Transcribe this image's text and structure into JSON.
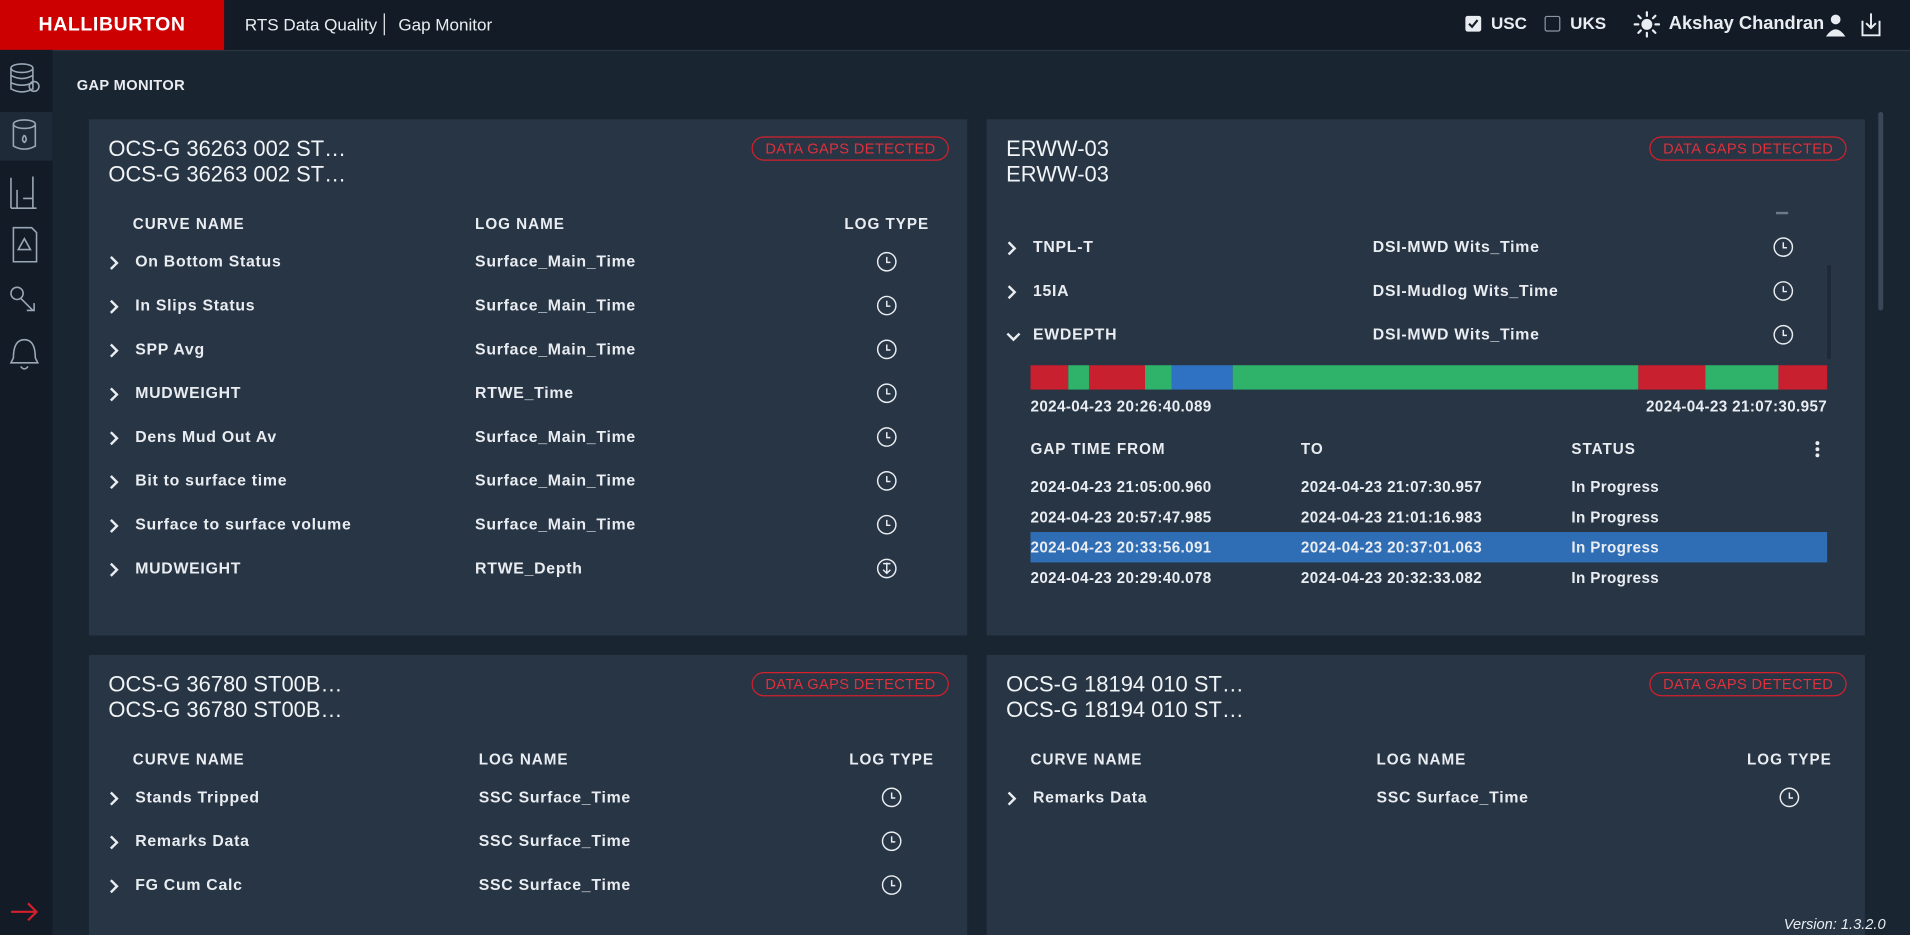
{
  "header": {
    "brand": "HALLIBURTON",
    "app": "RTS Data Quality",
    "page": "Gap Monitor",
    "units": [
      {
        "label": "USC",
        "checked": true
      },
      {
        "label": "UKS",
        "checked": false
      }
    ],
    "user": "Akshay Chandran"
  },
  "section_title": "GAP MONITOR",
  "panels": [
    {
      "title_lines": [
        "OCS-G 36263 002 ST…",
        "OCS-G 36263 002 ST…"
      ],
      "badge": "DATA GAPS DETECTED",
      "columns": [
        "CURVE NAME",
        "LOG NAME",
        "LOG TYPE"
      ],
      "rows": [
        {
          "curve": "On Bottom Status",
          "log": "Surface_Main_Time"
        },
        {
          "curve": "In Slips Status",
          "log": "Surface_Main_Time"
        },
        {
          "curve": "SPP Avg",
          "log": "Surface_Main_Time"
        },
        {
          "curve": "MUDWEIGHT",
          "log": "RTWE_Time"
        },
        {
          "curve": "Dens Mud Out Av",
          "log": "Surface_Main_Time"
        },
        {
          "curve": "Bit to surface time",
          "log": "Surface_Main_Time"
        },
        {
          "curve": "Surface to surface volume",
          "log": "Surface_Main_Time"
        },
        {
          "curve": "MUDWEIGHT",
          "log": "RTWE_Depth"
        }
      ]
    },
    {
      "title_lines": [
        "ERWW-03",
        "ERWW-03"
      ],
      "badge": "DATA GAPS DETECTED",
      "rows": [
        {
          "curve": "TNPL-T",
          "log": "DSI-MWD Wits_Time"
        },
        {
          "curve": "15IA",
          "log": "DSI-Mudlog Wits_Time"
        },
        {
          "curve": "EWDEPTH",
          "log": "DSI-MWD Wits_Time",
          "expanded": {
            "range_start": "2024-04-23 20:26:40.089",
            "range_end": "2024-04-23 21:07:30.957",
            "gap_columns": [
              "GAP TIME FROM",
              "TO",
              "STATUS"
            ],
            "gaps": [
              [
                "2024-04-23 21:05:00.960",
                "2024-04-23 21:07:30.957",
                "In Progress"
              ],
              [
                "2024-04-23 20:57:47.985",
                "2024-04-23 21:01:16.983",
                "In Progress"
              ],
              [
                "2024-04-23 20:33:56.091",
                "2024-04-23 20:37:01.063",
                "In Progress"
              ],
              [
                "2024-04-23 20:29:40.078",
                "2024-04-23 20:32:33.082",
                "In Progress"
              ]
            ],
            "selected_gap": 2
          }
        }
      ]
    },
    {
      "title_lines": [
        "OCS-G 36780 ST00B…",
        "OCS-G 36780 ST00B…"
      ],
      "badge": "DATA GAPS DETECTED",
      "columns": [
        "CURVE NAME",
        "LOG NAME",
        "LOG TYPE"
      ],
      "rows": [
        {
          "curve": "Stands Tripped",
          "log": "SSC Surface_Time"
        },
        {
          "curve": "Remarks Data",
          "log": "SSC Surface_Time"
        },
        {
          "curve": "FG Cum Calc",
          "log": "SSC Surface_Time"
        }
      ]
    },
    {
      "title_lines": [
        "OCS-G 18194 010 ST…",
        "OCS-G 18194 010 ST…"
      ],
      "badge": "DATA GAPS DETECTED",
      "columns": [
        "CURVE NAME",
        "LOG NAME",
        "LOG TYPE"
      ],
      "rows": [
        {
          "curve": "Remarks Data",
          "log": "SSC Surface_Time"
        }
      ]
    }
  ],
  "version": "Version: 1.3.2.0"
}
